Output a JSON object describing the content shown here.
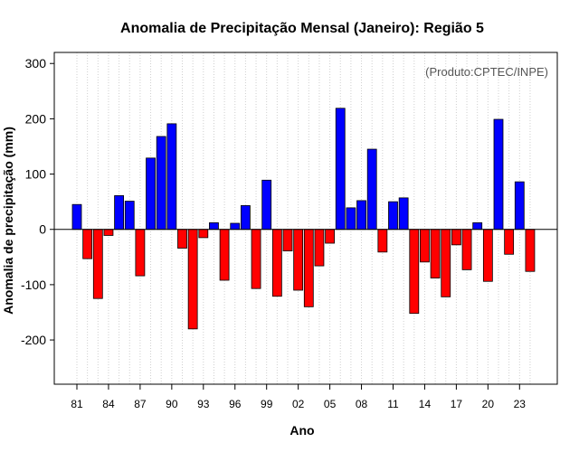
{
  "chart_data": {
    "type": "bar",
    "title": "Anomalia de Precipitação Mensal (Janeiro): Região 5",
    "xlabel": "Ano",
    "ylabel": "Anomalia de precipitação (mm)",
    "source_note": "(Produto:CPTEC/INPE)",
    "ylim": [
      -280,
      320
    ],
    "yticks": [
      -200,
      -100,
      0,
      100,
      200,
      300
    ],
    "tick_labels": [
      "81",
      "84",
      "87",
      "90",
      "93",
      "96",
      "99",
      "02",
      "05",
      "08",
      "11",
      "14",
      "17",
      "20",
      "23"
    ],
    "tick_every": 3,
    "grid": true,
    "positive_color": "#0000ff",
    "negative_color": "#ff0000",
    "categories": [
      "1981",
      "1982",
      "1983",
      "1984",
      "1985",
      "1986",
      "1987",
      "1988",
      "1989",
      "1990",
      "1991",
      "1992",
      "1993",
      "1994",
      "1995",
      "1996",
      "1997",
      "1998",
      "1999",
      "2000",
      "2001",
      "2002",
      "2003",
      "2004",
      "2005",
      "2006",
      "2007",
      "2008",
      "2009",
      "2010",
      "2011",
      "2012",
      "2013",
      "2014",
      "2015",
      "2016",
      "2017",
      "2018",
      "2019",
      "2020",
      "2021",
      "2022",
      "2023",
      "2024"
    ],
    "values": [
      45,
      -53,
      -125,
      -11,
      61,
      51,
      -84,
      129,
      168,
      191,
      -34,
      -180,
      -15,
      12,
      -92,
      11,
      43,
      -107,
      89,
      -121,
      -39,
      -110,
      -140,
      -66,
      -25,
      219,
      39,
      52,
      145,
      -41,
      50,
      57,
      -152,
      -59,
      -88,
      -122,
      -28,
      -73,
      12,
      -94,
      199,
      -45,
      86,
      -76
    ]
  }
}
